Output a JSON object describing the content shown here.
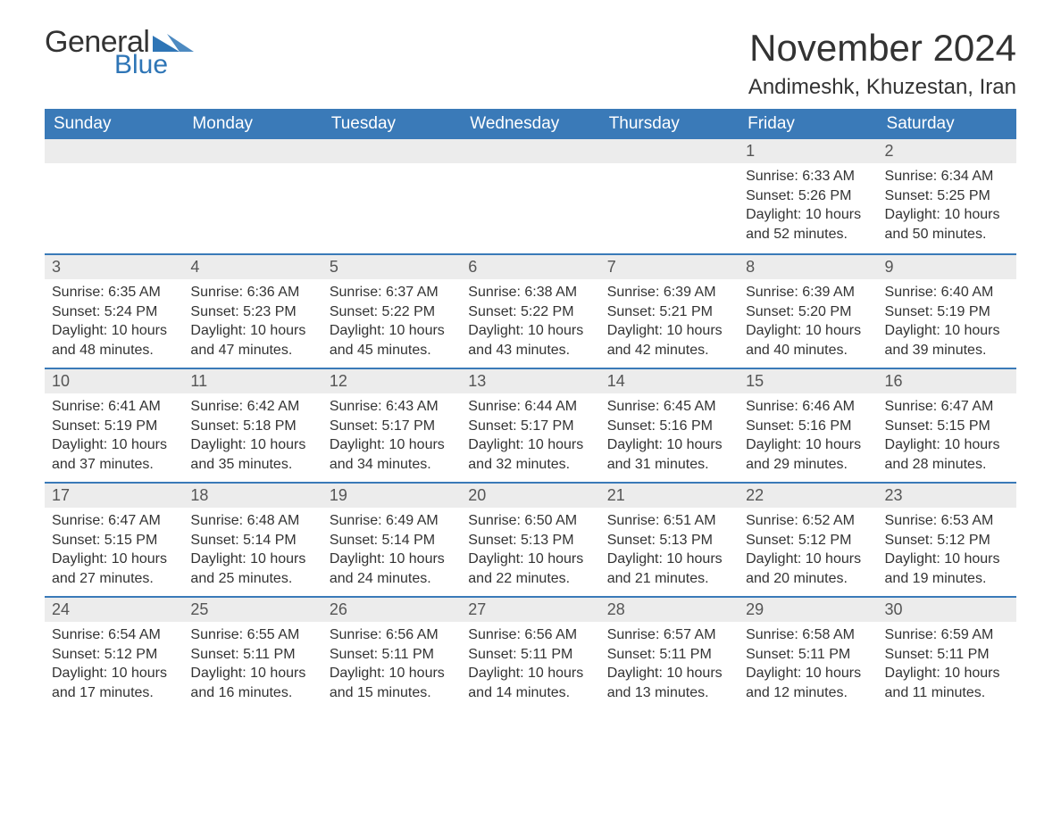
{
  "brand": {
    "general": "General",
    "blue": "Blue",
    "triangle_color": "#2e75b6"
  },
  "title": "November 2024",
  "location": "Andimeshk, Khuzestan, Iran",
  "colors": {
    "header_bg": "#3a7ab8",
    "header_text": "#ffffff",
    "dayrow_bg": "#ececec",
    "border_top": "#3a7ab8",
    "body_text": "#333333"
  },
  "weekdays": [
    "Sunday",
    "Monday",
    "Tuesday",
    "Wednesday",
    "Thursday",
    "Friday",
    "Saturday"
  ],
  "weeks": [
    [
      null,
      null,
      null,
      null,
      null,
      {
        "n": "1",
        "sunrise": "Sunrise: 6:33 AM",
        "sunset": "Sunset: 5:26 PM",
        "day1": "Daylight: 10 hours",
        "day2": "and 52 minutes."
      },
      {
        "n": "2",
        "sunrise": "Sunrise: 6:34 AM",
        "sunset": "Sunset: 5:25 PM",
        "day1": "Daylight: 10 hours",
        "day2": "and 50 minutes."
      }
    ],
    [
      {
        "n": "3",
        "sunrise": "Sunrise: 6:35 AM",
        "sunset": "Sunset: 5:24 PM",
        "day1": "Daylight: 10 hours",
        "day2": "and 48 minutes."
      },
      {
        "n": "4",
        "sunrise": "Sunrise: 6:36 AM",
        "sunset": "Sunset: 5:23 PM",
        "day1": "Daylight: 10 hours",
        "day2": "and 47 minutes."
      },
      {
        "n": "5",
        "sunrise": "Sunrise: 6:37 AM",
        "sunset": "Sunset: 5:22 PM",
        "day1": "Daylight: 10 hours",
        "day2": "and 45 minutes."
      },
      {
        "n": "6",
        "sunrise": "Sunrise: 6:38 AM",
        "sunset": "Sunset: 5:22 PM",
        "day1": "Daylight: 10 hours",
        "day2": "and 43 minutes."
      },
      {
        "n": "7",
        "sunrise": "Sunrise: 6:39 AM",
        "sunset": "Sunset: 5:21 PM",
        "day1": "Daylight: 10 hours",
        "day2": "and 42 minutes."
      },
      {
        "n": "8",
        "sunrise": "Sunrise: 6:39 AM",
        "sunset": "Sunset: 5:20 PM",
        "day1": "Daylight: 10 hours",
        "day2": "and 40 minutes."
      },
      {
        "n": "9",
        "sunrise": "Sunrise: 6:40 AM",
        "sunset": "Sunset: 5:19 PM",
        "day1": "Daylight: 10 hours",
        "day2": "and 39 minutes."
      }
    ],
    [
      {
        "n": "10",
        "sunrise": "Sunrise: 6:41 AM",
        "sunset": "Sunset: 5:19 PM",
        "day1": "Daylight: 10 hours",
        "day2": "and 37 minutes."
      },
      {
        "n": "11",
        "sunrise": "Sunrise: 6:42 AM",
        "sunset": "Sunset: 5:18 PM",
        "day1": "Daylight: 10 hours",
        "day2": "and 35 minutes."
      },
      {
        "n": "12",
        "sunrise": "Sunrise: 6:43 AM",
        "sunset": "Sunset: 5:17 PM",
        "day1": "Daylight: 10 hours",
        "day2": "and 34 minutes."
      },
      {
        "n": "13",
        "sunrise": "Sunrise: 6:44 AM",
        "sunset": "Sunset: 5:17 PM",
        "day1": "Daylight: 10 hours",
        "day2": "and 32 minutes."
      },
      {
        "n": "14",
        "sunrise": "Sunrise: 6:45 AM",
        "sunset": "Sunset: 5:16 PM",
        "day1": "Daylight: 10 hours",
        "day2": "and 31 minutes."
      },
      {
        "n": "15",
        "sunrise": "Sunrise: 6:46 AM",
        "sunset": "Sunset: 5:16 PM",
        "day1": "Daylight: 10 hours",
        "day2": "and 29 minutes."
      },
      {
        "n": "16",
        "sunrise": "Sunrise: 6:47 AM",
        "sunset": "Sunset: 5:15 PM",
        "day1": "Daylight: 10 hours",
        "day2": "and 28 minutes."
      }
    ],
    [
      {
        "n": "17",
        "sunrise": "Sunrise: 6:47 AM",
        "sunset": "Sunset: 5:15 PM",
        "day1": "Daylight: 10 hours",
        "day2": "and 27 minutes."
      },
      {
        "n": "18",
        "sunrise": "Sunrise: 6:48 AM",
        "sunset": "Sunset: 5:14 PM",
        "day1": "Daylight: 10 hours",
        "day2": "and 25 minutes."
      },
      {
        "n": "19",
        "sunrise": "Sunrise: 6:49 AM",
        "sunset": "Sunset: 5:14 PM",
        "day1": "Daylight: 10 hours",
        "day2": "and 24 minutes."
      },
      {
        "n": "20",
        "sunrise": "Sunrise: 6:50 AM",
        "sunset": "Sunset: 5:13 PM",
        "day1": "Daylight: 10 hours",
        "day2": "and 22 minutes."
      },
      {
        "n": "21",
        "sunrise": "Sunrise: 6:51 AM",
        "sunset": "Sunset: 5:13 PM",
        "day1": "Daylight: 10 hours",
        "day2": "and 21 minutes."
      },
      {
        "n": "22",
        "sunrise": "Sunrise: 6:52 AM",
        "sunset": "Sunset: 5:12 PM",
        "day1": "Daylight: 10 hours",
        "day2": "and 20 minutes."
      },
      {
        "n": "23",
        "sunrise": "Sunrise: 6:53 AM",
        "sunset": "Sunset: 5:12 PM",
        "day1": "Daylight: 10 hours",
        "day2": "and 19 minutes."
      }
    ],
    [
      {
        "n": "24",
        "sunrise": "Sunrise: 6:54 AM",
        "sunset": "Sunset: 5:12 PM",
        "day1": "Daylight: 10 hours",
        "day2": "and 17 minutes."
      },
      {
        "n": "25",
        "sunrise": "Sunrise: 6:55 AM",
        "sunset": "Sunset: 5:11 PM",
        "day1": "Daylight: 10 hours",
        "day2": "and 16 minutes."
      },
      {
        "n": "26",
        "sunrise": "Sunrise: 6:56 AM",
        "sunset": "Sunset: 5:11 PM",
        "day1": "Daylight: 10 hours",
        "day2": "and 15 minutes."
      },
      {
        "n": "27",
        "sunrise": "Sunrise: 6:56 AM",
        "sunset": "Sunset: 5:11 PM",
        "day1": "Daylight: 10 hours",
        "day2": "and 14 minutes."
      },
      {
        "n": "28",
        "sunrise": "Sunrise: 6:57 AM",
        "sunset": "Sunset: 5:11 PM",
        "day1": "Daylight: 10 hours",
        "day2": "and 13 minutes."
      },
      {
        "n": "29",
        "sunrise": "Sunrise: 6:58 AM",
        "sunset": "Sunset: 5:11 PM",
        "day1": "Daylight: 10 hours",
        "day2": "and 12 minutes."
      },
      {
        "n": "30",
        "sunrise": "Sunrise: 6:59 AM",
        "sunset": "Sunset: 5:11 PM",
        "day1": "Daylight: 10 hours",
        "day2": "and 11 minutes."
      }
    ]
  ]
}
